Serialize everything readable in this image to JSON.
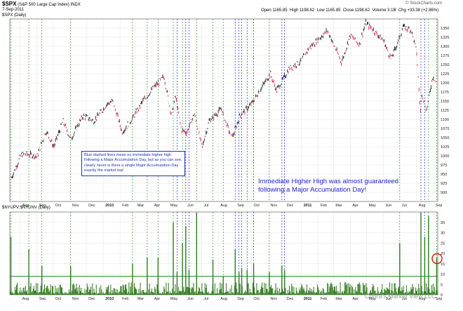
{
  "header": {
    "symbol": "$SPX",
    "name": "(S&P 500 Large Cap Index)",
    "exchange": "INDX",
    "date": "7-Sep-2011",
    "credit": "© StockCharts.com",
    "open_label": "Open",
    "open": "1165.85",
    "high_label": "High",
    "high": "1198.62",
    "low_label": "Low",
    "low": "1165.85",
    "close_label": "Close",
    "close": "1198.62",
    "volume_label": "Volume",
    "volume": "3.1B",
    "chg_label": "Chg",
    "chg": "+33.38 (+2.86%)",
    "price_legend": "$SPX (Daily)",
    "lower_legend": "$NYUPV:$NYDNV (Daily)"
  },
  "annotations": {
    "note_box": "Blue dashed lines mean no immediate higher high following a Major Accumulation Day, but as you can see, clearly never is there a single Major Accumulation Day exactly the market top!",
    "headline_line1": "Immediate Higher High was almost guaranteed",
    "headline_line2": "following a Major Accumulation Day!",
    "watermark": "Cobra's Market View LLC"
  },
  "colors": {
    "up_bar": "#1a1a1a",
    "down_bar": "#d2234a",
    "volume_bar": "#2f7a1e",
    "green_marker": "#2ea02e",
    "blue_marker": "#2030c8",
    "threshold_line": "#2c8c2c",
    "circle": "#d81818",
    "grid": "#e3e3e3"
  },
  "chart_data": [
    {
      "type": "line",
      "title": "$SPX (Daily)",
      "ylim": [
        875,
        1375
      ],
      "yticks": [
        900,
        925,
        950,
        975,
        1000,
        1025,
        1050,
        1075,
        1100,
        1125,
        1150,
        1175,
        1200,
        1225,
        1250,
        1275,
        1300,
        1325,
        1350
      ],
      "x_months": [
        "Aug",
        "Sep",
        "Oct",
        "Nov",
        "Dec",
        "2010",
        "Feb",
        "Mar",
        "Apr",
        "May",
        "Jun",
        "Jul",
        "Aug",
        "Sep",
        "Oct",
        "Nov",
        "Dec",
        "2011",
        "Feb",
        "Mar",
        "Apr",
        "May",
        "Jun",
        "Jul",
        "Aug",
        "Sep"
      ],
      "series": [
        {
          "x": [
            "2009-07-16",
            "2009-08-03",
            "2009-08-14",
            "2009-09-01",
            "2009-09-18",
            "2009-10-02",
            "2009-10-19",
            "2009-11-02",
            "2009-11-25",
            "2009-12-15",
            "2010-01-08",
            "2010-01-19",
            "2010-02-05",
            "2010-02-25",
            "2010-03-15",
            "2010-04-05",
            "2010-04-23",
            "2010-05-07",
            "2010-05-14",
            "2010-05-25",
            "2010-06-04",
            "2010-06-18",
            "2010-07-02",
            "2010-07-15",
            "2010-08-06",
            "2010-08-26",
            "2010-09-10",
            "2010-09-30",
            "2010-10-15",
            "2010-11-05",
            "2010-11-16",
            "2010-12-10",
            "2010-12-31",
            "2011-01-14",
            "2011-02-18",
            "2011-03-01",
            "2011-03-16",
            "2011-04-01",
            "2011-04-18",
            "2011-04-29",
            "2011-05-12",
            "2011-06-01",
            "2011-06-15",
            "2011-06-30",
            "2011-07-07",
            "2011-07-22",
            "2011-08-01",
            "2011-08-08",
            "2011-08-11",
            "2011-08-19",
            "2011-08-31",
            "2011-09-07"
          ],
          "values": [
            940,
            1003,
            1005,
            998,
            1068,
            1025,
            1095,
            1045,
            1110,
            1095,
            1142,
            1150,
            1065,
            1105,
            1150,
            1188,
            1217,
            1110,
            1165,
            1071,
            1064,
            1117,
            1022,
            1095,
            1128,
            1047,
            1110,
            1140,
            1176,
            1225,
            1178,
            1240,
            1258,
            1293,
            1343,
            1305,
            1256,
            1330,
            1305,
            1364,
            1347,
            1315,
            1265,
            1320,
            1353,
            1345,
            1287,
            1119,
            1172,
            1123,
            1219,
            1198
          ]
        }
      ]
    },
    {
      "type": "bar",
      "title": "$NYUPV:$NYDNV (Daily)",
      "ylim": [
        0,
        40
      ],
      "yticks": [
        0,
        5,
        10,
        15,
        20,
        25,
        30,
        35
      ],
      "threshold": 9,
      "x_months": [
        "Aug",
        "Sep",
        "Oct",
        "Nov",
        "Dec",
        "2010",
        "Feb",
        "Mar",
        "Apr",
        "May",
        "Jun",
        "Jul",
        "Aug",
        "Sep",
        "Oct",
        "Nov",
        "Dec",
        "2011",
        "Feb",
        "Mar",
        "Apr",
        "May",
        "Jun",
        "Jul",
        "Aug",
        "Sep"
      ],
      "major_accumulation_days": [
        {
          "date": "2009-07-15",
          "value": 28,
          "marker": "green"
        },
        {
          "date": "2009-08-17",
          "value": 22,
          "marker": "green"
        },
        {
          "date": "2009-09-10",
          "value": 14,
          "marker": "green"
        },
        {
          "date": "2009-11-02",
          "value": 14,
          "marker": "green"
        },
        {
          "date": "2010-02-24",
          "value": 15,
          "marker": "green"
        },
        {
          "date": "2010-03-23",
          "value": 18,
          "marker": "green"
        },
        {
          "date": "2010-04-12",
          "value": 18,
          "marker": "green"
        },
        {
          "date": "2010-05-10",
          "value": 35,
          "marker": "green"
        },
        {
          "date": "2010-05-17",
          "value": 11,
          "marker": "blue"
        },
        {
          "date": "2010-05-27",
          "value": 25,
          "marker": "green"
        },
        {
          "date": "2010-06-02",
          "value": 33,
          "marker": "blue"
        },
        {
          "date": "2010-06-08",
          "value": 12,
          "marker": "blue"
        },
        {
          "date": "2010-06-22",
          "value": 44,
          "marker": "green"
        },
        {
          "date": "2010-07-22",
          "value": 17,
          "marker": "green"
        },
        {
          "date": "2010-08-10",
          "value": 9,
          "marker": "green"
        },
        {
          "date": "2010-09-01",
          "value": 22,
          "marker": "blue"
        },
        {
          "date": "2010-09-08",
          "value": 11,
          "marker": "blue"
        },
        {
          "date": "2010-09-13",
          "value": 13,
          "marker": "blue"
        },
        {
          "date": "2010-09-23",
          "value": 12,
          "marker": "blue"
        },
        {
          "date": "2010-10-05",
          "value": 15,
          "marker": "blue"
        },
        {
          "date": "2010-11-03",
          "value": 11,
          "marker": "green"
        },
        {
          "date": "2010-11-26",
          "value": 14,
          "marker": "blue"
        },
        {
          "date": "2010-12-01",
          "value": 12,
          "marker": "blue"
        },
        {
          "date": "2011-07-01",
          "value": 25,
          "marker": "green"
        },
        {
          "date": "2011-08-09",
          "value": 40,
          "marker": "blue"
        },
        {
          "date": "2011-08-16",
          "value": 28,
          "marker": "blue"
        },
        {
          "date": "2011-08-23",
          "value": 38,
          "marker": "green"
        },
        {
          "date": "2011-09-07",
          "value": 18,
          "marker": "green"
        }
      ]
    }
  ]
}
